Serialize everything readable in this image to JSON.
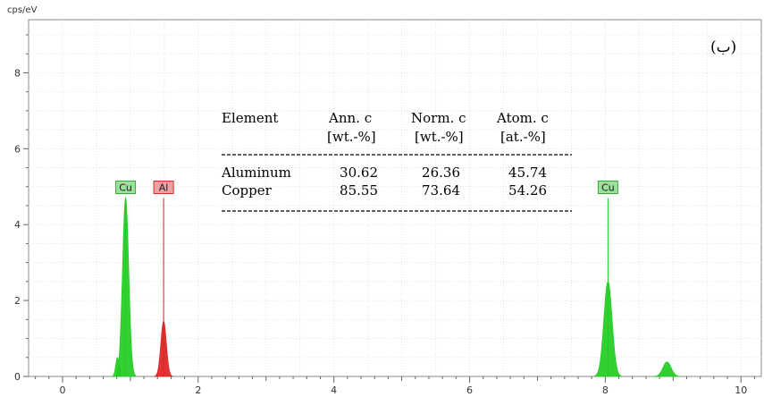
{
  "chart_data": {
    "type": "area",
    "unit_label": "cps/eV",
    "panel_label": "(ب)",
    "xlim": [
      -0.5,
      10.3
    ],
    "ylim": [
      0,
      9.4
    ],
    "x_ticks": [
      "0",
      "2",
      "4",
      "6",
      "8",
      "10"
    ],
    "x_tick_values": [
      0,
      2,
      4,
      6,
      8,
      10
    ],
    "y_ticks": [
      "0",
      "2",
      "4",
      "6",
      "8"
    ],
    "y_tick_values": [
      0,
      2,
      4,
      6,
      8
    ],
    "series": [
      {
        "element": "Cu",
        "color": "#22cc22",
        "peaks": [
          {
            "center": 0.93,
            "height": 4.7,
            "width": 0.045
          },
          {
            "center": 0.81,
            "height": 0.5,
            "width": 0.025
          },
          {
            "center": 8.04,
            "height": 2.5,
            "width": 0.06
          },
          {
            "center": 8.91,
            "height": 0.38,
            "width": 0.06
          }
        ],
        "lines": [
          0.93,
          8.04
        ]
      },
      {
        "element": "Al",
        "color": "#dd2222",
        "peaks": [
          {
            "center": 1.49,
            "height": 1.45,
            "width": 0.04
          }
        ],
        "lines": [
          1.49
        ]
      }
    ],
    "markers": [
      {
        "label": "Cu",
        "x": 0.93,
        "y": 4.7,
        "color": "#9be09b",
        "stroke": "#3aa83a"
      },
      {
        "label": "Al",
        "x": 1.49,
        "y": 4.7,
        "color": "#f0a0a0",
        "stroke": "#cc3333"
      },
      {
        "label": "Cu",
        "x": 8.04,
        "y": 4.7,
        "color": "#9be09b",
        "stroke": "#3aa83a"
      }
    ],
    "table": {
      "headers": [
        {
          "line1": "Element",
          "line2": ""
        },
        {
          "line1": "Ann. c",
          "line2": "[wt.-%]"
        },
        {
          "line1": "Norm. c",
          "line2": "[wt.-%]"
        },
        {
          "line1": "Atom. c",
          "line2": "[at.-%]"
        }
      ],
      "rows": [
        [
          "Aluminum",
          "30.62",
          "26.36",
          "45.74"
        ],
        [
          "Copper",
          "85.55",
          "73.64",
          "54.26"
        ]
      ]
    }
  }
}
